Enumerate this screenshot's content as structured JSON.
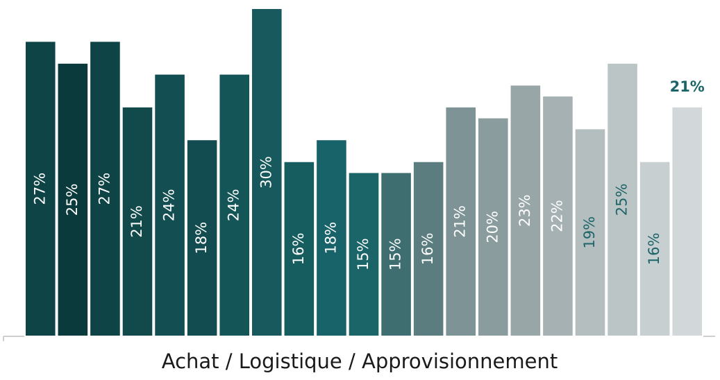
{
  "chart_data": {
    "type": "bar",
    "x_label": "Achat / Logistique / Approvisionnement",
    "categories": [
      null,
      null,
      null,
      null,
      null,
      null,
      null,
      null,
      null,
      null,
      null,
      null,
      null,
      null,
      null,
      null,
      null,
      null,
      null,
      null,
      null
    ],
    "values": [
      27,
      25,
      27,
      21,
      24,
      18,
      24,
      30,
      16,
      18,
      15,
      15,
      16,
      21,
      20,
      23,
      22,
      19,
      25,
      16,
      21
    ],
    "value_labels": [
      "27%",
      "25%",
      "27%",
      "21%",
      "24%",
      "18%",
      "24%",
      "30%",
      "16%",
      "18%",
      "15%",
      "15%",
      "16%",
      "21%",
      "20%",
      "23%",
      "22%",
      "19%",
      "25%",
      "16%",
      "21%"
    ],
    "colors": [
      "#0f4446",
      "#0b3a3c",
      "#0f4446",
      "#124a4c",
      "#134f52",
      "#134c50",
      "#145558",
      "#17595d",
      "#165d60",
      "#18626a",
      "#1b6468",
      "#3f6e71",
      "#5b7d80",
      "#7e9395",
      "#8a9c9e",
      "#98a6a8",
      "#a5b1b2",
      "#b4bebf",
      "#bcc5c6",
      "#c8cfd1",
      "#d2d8da"
    ],
    "label_colors": [
      "#ffffff",
      "#ffffff",
      "#ffffff",
      "#ffffff",
      "#ffffff",
      "#ffffff",
      "#ffffff",
      "#ffffff",
      "#ffffff",
      "#ffffff",
      "#ffffff",
      "#ffffff",
      "#ffffff",
      "#ffffff",
      "#ffffff",
      "#ffffff",
      "#ffffff",
      "#1b6468",
      "#1b6468",
      "#1b6468",
      "#1b6468"
    ],
    "ylim": [
      0,
      30
    ]
  }
}
